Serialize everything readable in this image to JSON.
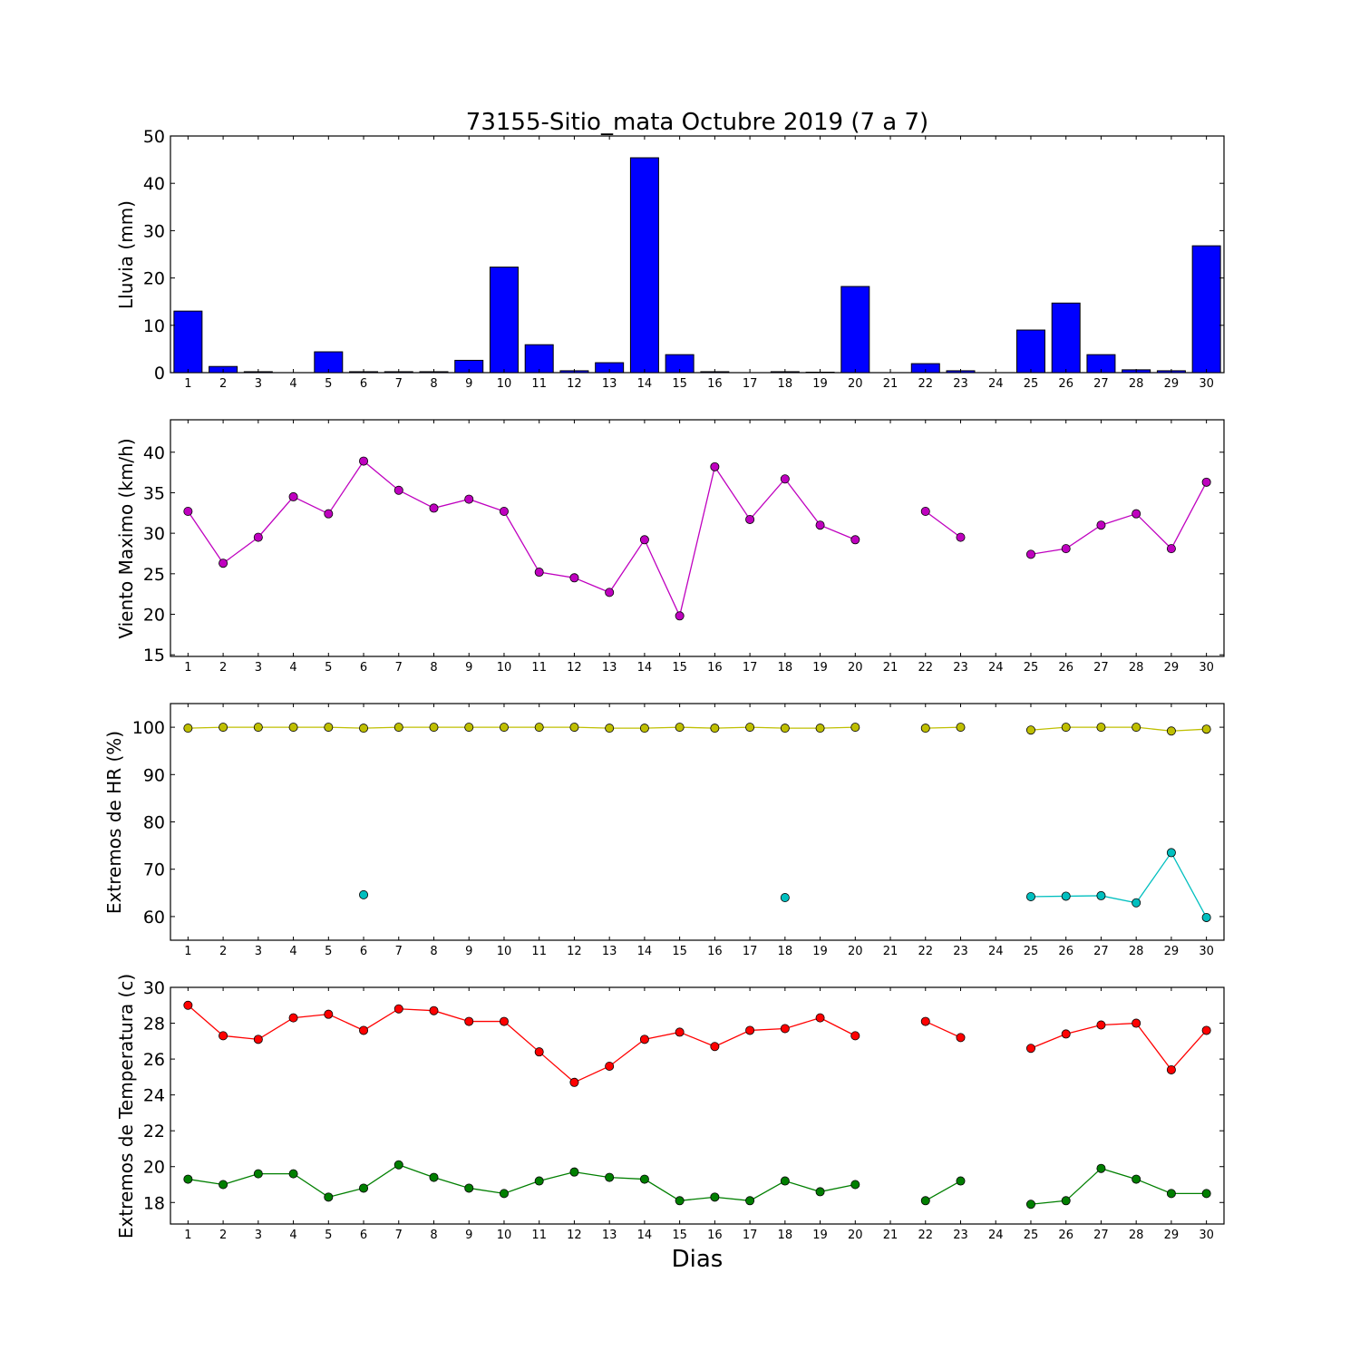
{
  "figure": {
    "title": "73155-Sitio_mata Octubre 2019  (7 a 7)",
    "xlabel": "Dias"
  },
  "chart_data": [
    {
      "type": "bar",
      "id": "lluvia",
      "ylabel": "Lluvia (mm)",
      "ylim": [
        0,
        50
      ],
      "yticks": [
        0,
        10,
        20,
        30,
        40,
        50
      ],
      "categories": [
        1,
        2,
        3,
        4,
        5,
        6,
        7,
        8,
        9,
        10,
        11,
        12,
        13,
        14,
        15,
        16,
        17,
        18,
        19,
        20,
        21,
        22,
        23,
        24,
        25,
        26,
        27,
        28,
        29,
        30
      ],
      "values": [
        13.0,
        1.3,
        0.2,
        0,
        4.4,
        0.2,
        0.2,
        0.2,
        2.6,
        22.3,
        5.9,
        0.4,
        2.1,
        45.4,
        3.8,
        0.2,
        0,
        0.2,
        0.1,
        18.2,
        0,
        1.9,
        0.4,
        0,
        9.0,
        14.7,
        3.8,
        0.6,
        0.4,
        26.8
      ],
      "color": "#0000ff",
      "grid": false
    },
    {
      "type": "line",
      "id": "viento",
      "ylabel": "Viento Maximo (km/h)",
      "ylim": [
        14.8,
        44
      ],
      "yticks": [
        15,
        20,
        25,
        30,
        35,
        40
      ],
      "x": [
        1,
        2,
        3,
        4,
        5,
        6,
        7,
        8,
        9,
        10,
        11,
        12,
        13,
        14,
        15,
        16,
        17,
        18,
        19,
        20,
        21,
        22,
        23,
        24,
        25,
        26,
        27,
        28,
        29,
        30
      ],
      "series": [
        {
          "color": "#bf00bf",
          "values": [
            32.7,
            26.3,
            29.5,
            34.5,
            32.4,
            38.9,
            35.3,
            33.1,
            34.2,
            32.7,
            25.2,
            24.5,
            22.7,
            29.2,
            19.8,
            38.2,
            31.7,
            36.7,
            31.0,
            29.2,
            null,
            32.7,
            29.5,
            null,
            27.4,
            28.1,
            31.0,
            32.4,
            28.1,
            36.3
          ]
        }
      ],
      "grid": false
    },
    {
      "type": "line",
      "id": "hr",
      "ylabel": "Extremos de HR (%)",
      "ylim": [
        55,
        105
      ],
      "yticks": [
        60,
        70,
        80,
        90,
        100
      ],
      "x": [
        1,
        2,
        3,
        4,
        5,
        6,
        7,
        8,
        9,
        10,
        11,
        12,
        13,
        14,
        15,
        16,
        17,
        18,
        19,
        20,
        21,
        22,
        23,
        24,
        25,
        26,
        27,
        28,
        29,
        30
      ],
      "series": [
        {
          "color": "#bfbf00",
          "values": [
            99.8,
            100,
            100,
            100,
            100,
            99.8,
            100,
            100,
            100,
            100,
            100,
            100,
            99.8,
            99.8,
            100,
            99.8,
            100,
            99.8,
            99.8,
            100,
            null,
            99.8,
            100,
            null,
            99.4,
            100,
            100,
            100,
            99.2,
            99.6
          ]
        },
        {
          "color": "#00bfbf",
          "values": [
            null,
            null,
            null,
            null,
            null,
            64.6,
            null,
            null,
            null,
            null,
            null,
            null,
            null,
            null,
            null,
            null,
            null,
            64.0,
            null,
            null,
            null,
            null,
            null,
            null,
            64.2,
            64.3,
            64.4,
            62.9,
            73.5,
            59.8
          ]
        }
      ],
      "grid": false
    },
    {
      "type": "line",
      "id": "temp",
      "ylabel": "Extremos de Temperatura (c)",
      "ylim": [
        16.8,
        30
      ],
      "yticks": [
        18,
        20,
        22,
        24,
        26,
        28,
        30
      ],
      "x": [
        1,
        2,
        3,
        4,
        5,
        6,
        7,
        8,
        9,
        10,
        11,
        12,
        13,
        14,
        15,
        16,
        17,
        18,
        19,
        20,
        21,
        22,
        23,
        24,
        25,
        26,
        27,
        28,
        29,
        30
      ],
      "series": [
        {
          "color": "#ff0000",
          "values": [
            29.0,
            27.3,
            27.1,
            28.3,
            28.5,
            27.6,
            28.8,
            28.7,
            28.1,
            28.1,
            26.4,
            24.7,
            25.6,
            27.1,
            27.5,
            26.7,
            27.6,
            27.7,
            28.3,
            27.3,
            null,
            28.1,
            27.2,
            null,
            26.6,
            27.4,
            27.9,
            28.0,
            25.4,
            27.6
          ]
        },
        {
          "color": "#007f00",
          "values": [
            19.3,
            19.0,
            19.6,
            19.6,
            18.3,
            18.8,
            20.1,
            19.4,
            18.8,
            18.5,
            19.2,
            19.7,
            19.4,
            19.3,
            18.1,
            18.3,
            18.1,
            19.2,
            18.6,
            19.0,
            null,
            18.1,
            19.2,
            null,
            17.9,
            18.1,
            19.9,
            19.3,
            18.5,
            18.5
          ]
        }
      ],
      "grid": false
    }
  ]
}
